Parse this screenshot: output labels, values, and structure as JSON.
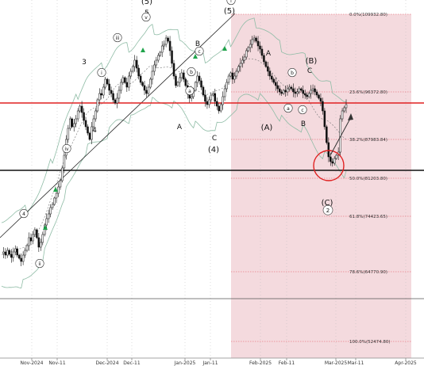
{
  "chart_data": {
    "type": "candlestick",
    "x_ticks": [
      "Nov-2024",
      "Nov-11",
      "Dec-2024",
      "Dec-11",
      "Jan-2025",
      "Jan-11",
      "Feb-2025",
      "Feb-11",
      "Mar-2025",
      "Mar-11",
      "Apr-2025"
    ],
    "fib_levels": [
      {
        "label": "0.0%(109932.80)",
        "value": 109932.8
      },
      {
        "label": "23.6%(96372.80)",
        "value": 96372.8
      },
      {
        "label": "38.2%(87983.84)",
        "value": 87983.84
      },
      {
        "label": "50.0%(81203.80)",
        "value": 81203.8
      },
      {
        "label": "61.8%(74423.65)",
        "value": 74423.65
      },
      {
        "label": "78.6%(64770.90)",
        "value": 64770.9
      },
      {
        "label": "100.0%(52474.80)",
        "value": 52474.8
      }
    ],
    "horizontal_lines": [
      {
        "name": "resistance",
        "color": "#e02020"
      },
      {
        "name": "support",
        "color": "#111111"
      },
      {
        "name": "reference",
        "color": "#555555"
      }
    ],
    "wave_labels": [
      "(5)",
      "5",
      "v",
      "3",
      "iii",
      "i",
      "iv",
      "ii",
      "4",
      "B",
      "c",
      "b",
      "a",
      "A",
      "C",
      "(4)",
      "(5)",
      "i",
      "A",
      "b",
      "a",
      "c",
      "B",
      "(A)",
      "(B)",
      "C",
      "(C)",
      "2",
      "4"
    ],
    "colors": {
      "fib_zone": "#f3d7db",
      "candle": "#111111",
      "bollinger": "#8fbca6",
      "resistance": "#e02020",
      "support": "#111111",
      "circle": "#e02020",
      "up_marker": "#1fa34a"
    }
  }
}
